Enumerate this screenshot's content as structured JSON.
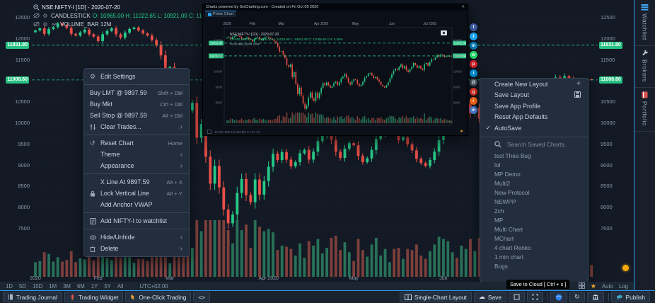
{
  "colors": {
    "accent_blue": "#2a9df4",
    "green": "#26c987",
    "red": "#ea4f47",
    "tag_green": "#27c281",
    "star_orange": "#f5a623"
  },
  "legend": {
    "symbol_line": "NSE:NIFTY-I [1D] - 2020-07-20",
    "candlestick_label": "CANDLESTICK",
    "ohlc_text": "O: 10965.00 H: 11022.65 L: 10921.00 C: 11008.60",
    "volume_line": "VOLUME_BAR 12M"
  },
  "popup": {
    "title": "Charts powered by GoCharting.com  -  Created on Fri Oct 09 2020",
    "close_glyph": "✕",
    "tab": "Prime Chart",
    "legend_symbol": "NSE:NIFTY-I [1D] - 2020-07-20",
    "legend_candle": "CANDLESTICK O: 10965.00 H: 11022.65 L: 10921.00 C: 11008.60 CH: 0.40%",
    "legend_volume": "VOLUME_BAR 12M",
    "bottom_timeframes": "1D  5D  15D  1M  3M  6M  1Y  5Y  All",
    "bottom_star": "★"
  },
  "context_menu": {
    "sections": [
      {
        "items": [
          {
            "icon": "gear",
            "label": "Edit Settings"
          }
        ]
      },
      {
        "items": [
          {
            "label": "Buy LMT @ 9897.59",
            "shortcut": "Shift + Dbl"
          },
          {
            "label": "Buy Mkt",
            "shortcut": "Ctrl + Dbl"
          },
          {
            "label": "Sell Stop @ 9897.59",
            "shortcut": "Alt + Dbl"
          },
          {
            "icon": "sliders",
            "label": "Clear Trades...",
            "submenu": true
          }
        ]
      },
      {
        "items": [
          {
            "icon": "reset",
            "label": "Reset Chart",
            "shortcut": "Home"
          },
          {
            "label": "Theme",
            "submenu": true,
            "indent": true
          },
          {
            "label": "Appearance",
            "submenu": true,
            "indent": true
          }
        ]
      },
      {
        "items": [
          {
            "label": "X Line At 9897.59",
            "shortcut": "Alt + X",
            "indent": true
          },
          {
            "icon": "lock",
            "label": "Lock Vertical Line",
            "shortcut": "Alt + Y"
          },
          {
            "label": "Add Anchor VWAP",
            "indent": true
          }
        ]
      },
      {
        "items": [
          {
            "icon": "list-add",
            "label": "Add NIFTY-I to watchlist"
          }
        ]
      },
      {
        "items": [
          {
            "icon": "eye",
            "label": "Hide/Unhide",
            "submenu": true
          },
          {
            "icon": "trash",
            "label": "Delete",
            "submenu": true
          }
        ]
      }
    ]
  },
  "layout_menu": {
    "items": [
      {
        "label": "Create New Layout",
        "right_icon": "plus"
      },
      {
        "label": "Save Layout",
        "right_icon": "save"
      },
      {
        "label": "Save App Profile"
      },
      {
        "label": "Reset App Defaults"
      },
      {
        "label": "AutoSave",
        "checked": true
      }
    ],
    "search_placeholder": "Search Saved Charts.",
    "saved_charts": [
      "test Thea Bug",
      "lol",
      "MP Demo",
      "Multi2",
      "New Protocol",
      "NEWPP",
      "2ch",
      "MP",
      "Multi Chart",
      "MChart",
      "4 chart Renko",
      "1 min chart",
      "Bugs"
    ]
  },
  "social_icons": [
    {
      "name": "facebook",
      "color": "#3b5998",
      "glyph": "f"
    },
    {
      "name": "twitter",
      "color": "#1da1f2",
      "glyph": "t"
    },
    {
      "name": "linkedin",
      "color": "#0077b5",
      "glyph": "in"
    },
    {
      "name": "whatsapp",
      "color": "#25d366",
      "glyph": "w"
    },
    {
      "name": "pinterest",
      "color": "#cb2027",
      "glyph": "p"
    },
    {
      "name": "telegram",
      "color": "#0088cc",
      "glyph": "t"
    },
    {
      "name": "email",
      "color": "#46505e",
      "glyph": "@"
    },
    {
      "name": "gmail",
      "color": "#d93025",
      "glyph": "g"
    },
    {
      "name": "reddit",
      "color": "#ff6b1a",
      "glyph": "r"
    },
    {
      "name": "messenger",
      "color": "#4a7fd4",
      "glyph": "m"
    }
  ],
  "sidebar": {
    "tabs": [
      {
        "name": "watchlist",
        "label": "Watchlist",
        "icon": "watchlist"
      },
      {
        "name": "brokers",
        "label": "Brokers",
        "icon": "wrench"
      },
      {
        "name": "portfolio",
        "label": "Portfolio",
        "icon": "book"
      }
    ]
  },
  "timeframe_bar": {
    "timeframes": [
      "1D",
      "5D",
      "15D",
      "1M",
      "3M",
      "6M",
      "1Y",
      "5Y",
      "All"
    ],
    "timezone": "UTC+02:00",
    "right_labels": [
      "Auto",
      "Log"
    ]
  },
  "bottom_toolbar": {
    "left": [
      {
        "icon": "journal",
        "label": "Trading Journal",
        "name": "trading-journal-button"
      },
      {
        "icon": "rocket",
        "label": "Trading Widget",
        "name": "trading-widget-button"
      },
      {
        "icon": "cursor",
        "label": "One-Click Trading",
        "name": "one-click-trading-button"
      },
      {
        "label": "<>",
        "name": "code-button"
      }
    ],
    "right": [
      {
        "icon": "layout",
        "label": "Single-Chart Layout",
        "name": "single-chart-layout-button"
      },
      {
        "icon": "cloud",
        "label": "Save",
        "name": "save-button"
      },
      {
        "icon": "frame",
        "name": "frame-button"
      },
      {
        "icon": "fullscreen",
        "name": "fullscreen-button"
      },
      {
        "sep": true
      },
      {
        "icon": "globe",
        "name": "globe-button"
      },
      {
        "icon": "refresh",
        "name": "refresh-button"
      },
      {
        "icon": "bank",
        "name": "exchange-button"
      },
      {
        "sep": true
      },
      {
        "icon": "megaphone",
        "label": "Publish",
        "name": "publish-button"
      }
    ]
  },
  "tooltip": "Save to Cloud [ Ctrl + s ]",
  "chart_data": {
    "type": "candlestick+volume",
    "symbol": "NSE:NIFTY-I",
    "interval": "1D",
    "date": "2020-07-20",
    "last": {
      "open": 10965.0,
      "high": 11022.65,
      "low": 10921.0,
      "close": 11008.6
    },
    "price_lines": [
      {
        "price": 11831.8,
        "label": "11831.80"
      },
      {
        "price": 11008.6,
        "label": "11008.60"
      }
    ],
    "y_ticks": [
      12500,
      12000,
      11500,
      10500,
      10000,
      9500,
      9000,
      8500,
      8000,
      7500
    ],
    "y_range": [
      7400,
      12600
    ],
    "x_labels": [
      {
        "text": "2020",
        "idx": 0
      },
      {
        "text": "Feb",
        "idx": 14
      },
      {
        "text": "Mar",
        "idx": 30
      },
      {
        "text": "Apr 2020",
        "idx": 52
      },
      {
        "text": "May",
        "idx": 71
      },
      {
        "text": "Jun",
        "idx": 91
      },
      {
        "text": "Jul 2020",
        "idx": 112
      }
    ],
    "mini_side_ticks": [
      12000,
      11000,
      10000,
      9000,
      8000
    ],
    "closes": [
      12180,
      12230,
      12100,
      12215,
      12260,
      12345,
      12300,
      12240,
      12100,
      12060,
      12135,
      12200,
      12090,
      12035,
      11930,
      12090,
      12170,
      12230,
      12090,
      12010,
      12130,
      12215,
      12250,
      12180,
      12110,
      12060,
      11950,
      11830,
      11590,
      11290,
      11320,
      11080,
      10870,
      10420,
      10290,
      10460,
      9640,
      9960,
      9190,
      8550,
      8970,
      8460,
      7940,
      7610,
      7820,
      8330,
      8660,
      8280,
      8110,
      8650,
      8290,
      8610,
      8950,
      9260,
      9110,
      9300,
      9120,
      8960,
      9060,
      9270,
      9350,
      9120,
      9310,
      9560,
      9680,
      9850,
      9590,
      9310,
      9160,
      9380,
      9510,
      9460,
      9210,
      9060,
      9150,
      9350,
      9610,
      9710,
      9870,
      9910,
      9750,
      9580,
      9650,
      9490,
      9340,
      9140,
      9040,
      8970,
      9110,
      9310,
      9580,
      9830,
      10060,
      10190,
      10110,
      10300,
      10460,
      10210,
      10350,
      10090,
      9960,
      10150,
      10310,
      10550,
      10430,
      10240,
      10360,
      10190,
      10090,
      10470,
      10550,
      10380,
      10610,
      10800,
      10770,
      10910,
      11070,
      10950,
      11100,
      11050,
      10930,
      11020,
      10965,
      11022.65,
      11008.6
    ]
  }
}
